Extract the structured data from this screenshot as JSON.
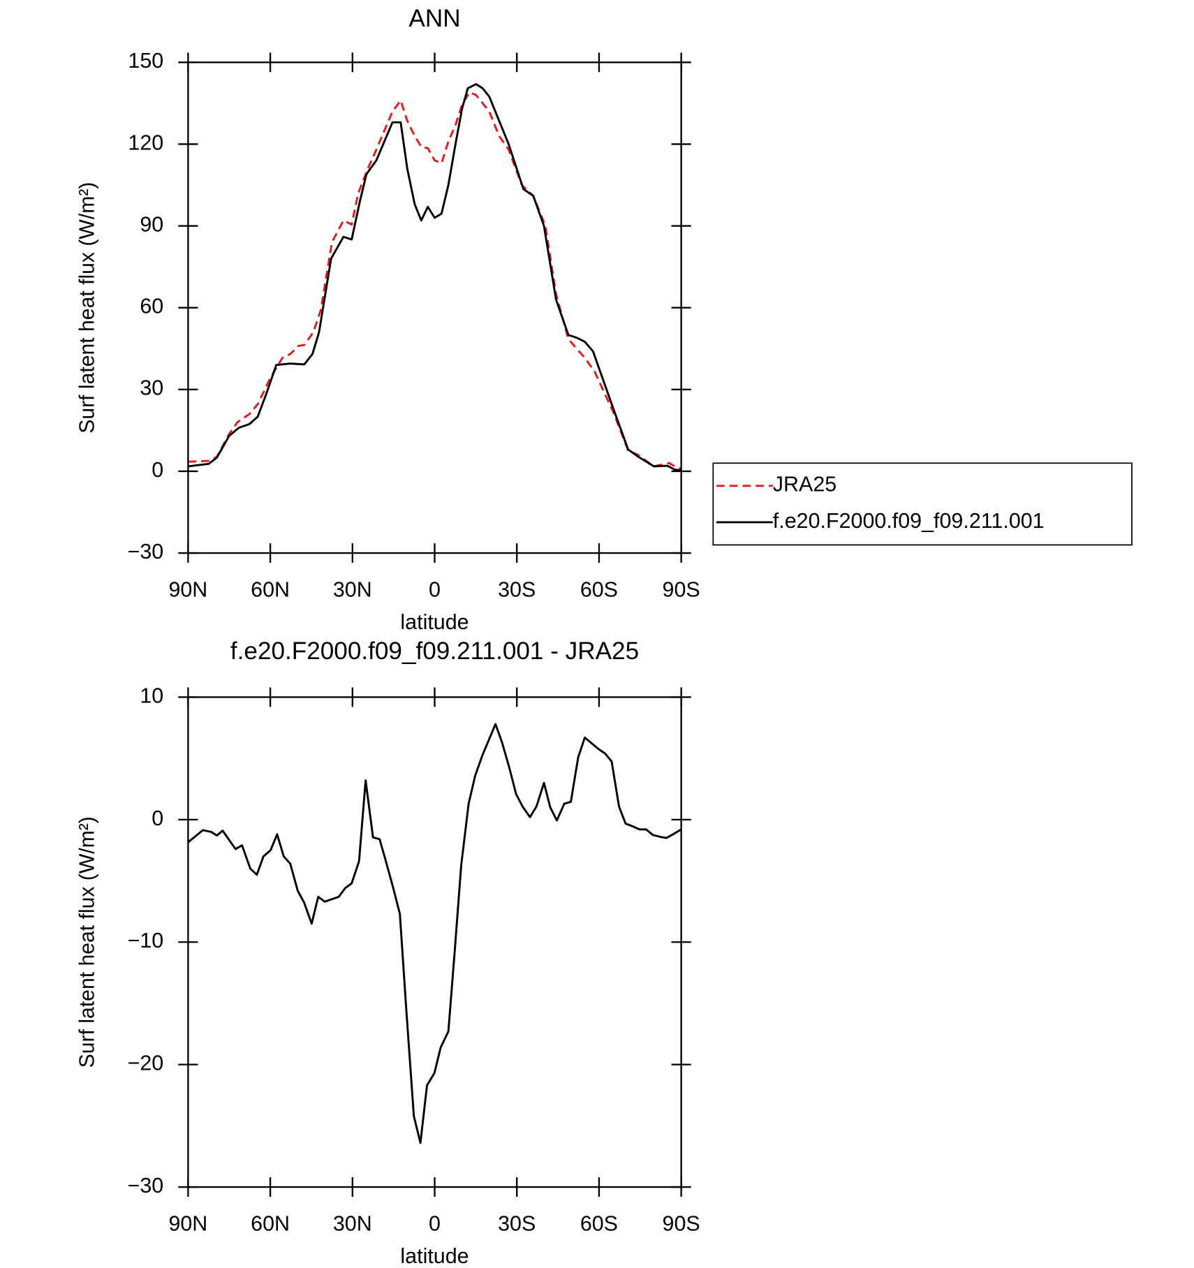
{
  "chart_data": [
    {
      "type": "line",
      "title": "ANN",
      "xlabel": "latitude",
      "ylabel": "Surf latent heat flux (W/m²)",
      "xlim": [
        90,
        -90
      ],
      "xticks": [
        {
          "value": 90,
          "label": "90N"
        },
        {
          "value": 60,
          "label": "60N"
        },
        {
          "value": 30,
          "label": "30N"
        },
        0,
        {
          "value": -30,
          "label": "30S"
        },
        {
          "value": -60,
          "label": "60S"
        },
        {
          "value": -90,
          "label": "90S"
        }
      ],
      "ylim": [
        -30,
        150
      ],
      "yticks": [
        {
          "value": -30,
          "label": "−30"
        },
        0,
        30,
        60,
        90,
        120,
        150
      ],
      "legend": "right",
      "series": [
        {
          "name": "JRA25",
          "color": "#e41a1c",
          "dash": true,
          "x": [
            90,
            82.5,
            79.5,
            75,
            72,
            67.6,
            64.6,
            60.1,
            55.6,
            52.7,
            49.7,
            47.6,
            44.3,
            41.6,
            37.5,
            33.3,
            30.3,
            27.9,
            24.4,
            21.3,
            15.4,
            12.4,
            10,
            7.3,
            4.9,
            2.5,
            0,
            -2.5,
            -5,
            -7.6,
            -10,
            -12.7,
            -15.1,
            -19.9,
            -23.5,
            -27,
            -31.8,
            -36,
            -40.4,
            -44.3,
            -48.8,
            -51.8,
            -54.8,
            -58.4,
            -65.2,
            -70.6,
            -74.2,
            -80,
            -85.6,
            -87.6,
            -90
          ],
          "values": [
            3.5,
            3.8,
            5.3,
            13.7,
            18,
            21,
            24.6,
            34,
            41.6,
            43,
            46,
            46.3,
            51,
            59,
            84,
            92,
            90.5,
            102,
            111,
            118,
            132,
            136,
            128.5,
            123,
            119,
            118.5,
            114,
            113,
            121,
            127,
            134.5,
            139,
            138,
            132,
            123,
            118,
            105,
            101,
            90,
            65,
            48.5,
            45,
            41.6,
            36.5,
            21.7,
            7.7,
            6,
            1.8,
            3,
            1.8,
            0.9
          ]
        },
        {
          "name": "f.e20.F2000.f09_f09.211.001",
          "color": "#000000",
          "dash": false,
          "x": [
            90,
            82.5,
            79.5,
            75,
            71.4,
            67.6,
            64.6,
            61.6,
            57.8,
            52.7,
            47.6,
            44.6,
            42.2,
            37.8,
            33.3,
            30.3,
            27.3,
            24.9,
            21.3,
            15.4,
            12.4,
            10,
            7.3,
            4.9,
            2.5,
            0,
            -2.5,
            -5,
            -7.6,
            -10,
            -12.1,
            -15.1,
            -17.5,
            -19.9,
            -27,
            -32.4,
            -36,
            -39.9,
            -44.3,
            -48.8,
            -51.8,
            -54.8,
            -57.8,
            -65.2,
            -70.6,
            -74.2,
            -80,
            -85,
            -87.6,
            -90
          ],
          "values": [
            1.8,
            2.7,
            5,
            13,
            16,
            17.3,
            20,
            28,
            39,
            39.5,
            39.2,
            43,
            51,
            78,
            86,
            85,
            99,
            109,
            114,
            128,
            128,
            111,
            98,
            92,
            97,
            93,
            94.5,
            105,
            120,
            133,
            140.5,
            142,
            140.5,
            137.5,
            120,
            103.5,
            101,
            90,
            63,
            50,
            49,
            47.5,
            44,
            23,
            8,
            5.4,
            1.8,
            2,
            0.6,
            0.3
          ]
        }
      ]
    },
    {
      "type": "line",
      "title": "f.e20.F2000.f09_f09.211.001 - JRA25",
      "xlabel": "latitude",
      "ylabel": "Surf latent heat flux (W/m²)",
      "xlim": [
        90,
        -90
      ],
      "xticks": [
        {
          "value": 90,
          "label": "90N"
        },
        {
          "value": 60,
          "label": "60N"
        },
        {
          "value": 30,
          "label": "30N"
        },
        0,
        {
          "value": -30,
          "label": "30S"
        },
        {
          "value": -60,
          "label": "60S"
        },
        {
          "value": -90,
          "label": "90S"
        }
      ],
      "ylim": [
        -30,
        10
      ],
      "yticks": [
        {
          "value": -30,
          "label": "−30"
        },
        {
          "value": -20,
          "label": "−20"
        },
        {
          "value": -10,
          "label": "−10"
        },
        0,
        10
      ],
      "series": [
        {
          "color": "#000000",
          "dash": false,
          "x": [
            90,
            84.6,
            81.6,
            79.5,
            77.4,
            72.7,
            70.3,
            67.3,
            64.9,
            62.5,
            59.9,
            57.5,
            55.1,
            52.7,
            50,
            47.6,
            44.9,
            42.5,
            40.1,
            35,
            32.7,
            30.3,
            27.6,
            25.2,
            22.5,
            20.1,
            17.8,
            15.1,
            12.7,
            10.3,
            7.6,
            5.2,
            2.8,
            0.1,
            -2.2,
            -5,
            -7.3,
            -9.7,
            -12.4,
            -14.8,
            -17.5,
            -22.2,
            -24.6,
            -27.3,
            -29.7,
            -32.1,
            -34.8,
            -37.2,
            -39.9,
            -42.2,
            -44.6,
            -47.3,
            -49.7,
            -52.4,
            -54.8,
            -59.9,
            -62.2,
            -64.6,
            -67.3,
            -69.7,
            -72.1,
            -74.8,
            -77.2,
            -79.6,
            -82.2,
            -84.6,
            -87,
            -90
          ],
          "values": [
            -1.85,
            -0.86,
            -1,
            -1.3,
            -0.9,
            -2.4,
            -2.1,
            -4,
            -4.5,
            -3,
            -2.5,
            -1.2,
            -3,
            -3.6,
            -5.8,
            -6.8,
            -8.5,
            -6.3,
            -6.7,
            -6.3,
            -5.6,
            -5.2,
            -3.4,
            3.2,
            -1.45,
            -1.6,
            -3.4,
            -5.6,
            -7.7,
            -15.7,
            -24.2,
            -26.4,
            -21.7,
            -20.7,
            -18.6,
            -17.3,
            -10.8,
            -3.7,
            1.3,
            3.6,
            5.3,
            7.8,
            6.3,
            4.2,
            2.1,
            1.06,
            0.2,
            1.1,
            3,
            1,
            -0.07,
            1.3,
            1.45,
            5.1,
            6.7,
            5.75,
            5.4,
            4.75,
            1.06,
            -0.33,
            -0.53,
            -0.8,
            -0.8,
            -1.25,
            -1.4,
            -1.5,
            -1.2,
            -0.8
          ]
        }
      ]
    }
  ]
}
